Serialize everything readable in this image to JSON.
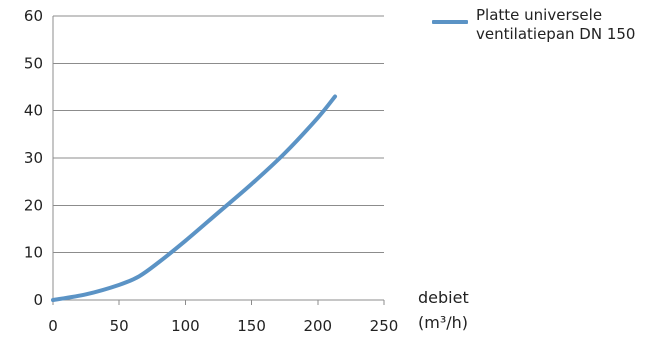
{
  "chart_data": {
    "type": "line",
    "title": "",
    "xlabel": "debiet",
    "xlabel_unit": "(m³/h)",
    "ylabel": "",
    "xlim": [
      0,
      250
    ],
    "ylim": [
      0,
      60
    ],
    "x_ticks": [
      0,
      50,
      100,
      150,
      200,
      250
    ],
    "y_ticks": [
      0,
      10,
      20,
      30,
      40,
      50,
      60
    ],
    "grid": "horizontal",
    "legend_position": "top-right",
    "series": [
      {
        "name_lines": [
          "Platte universele",
          "ventilatiepan DN 150"
        ],
        "color": "#5b93c5",
        "x": [
          0,
          25,
          50,
          65,
          80,
          100,
          125,
          150,
          175,
          200,
          213
        ],
        "y": [
          0,
          1.2,
          3.2,
          5.0,
          8.0,
          12.5,
          18.5,
          24.5,
          31.0,
          38.5,
          43.0
        ]
      }
    ]
  }
}
